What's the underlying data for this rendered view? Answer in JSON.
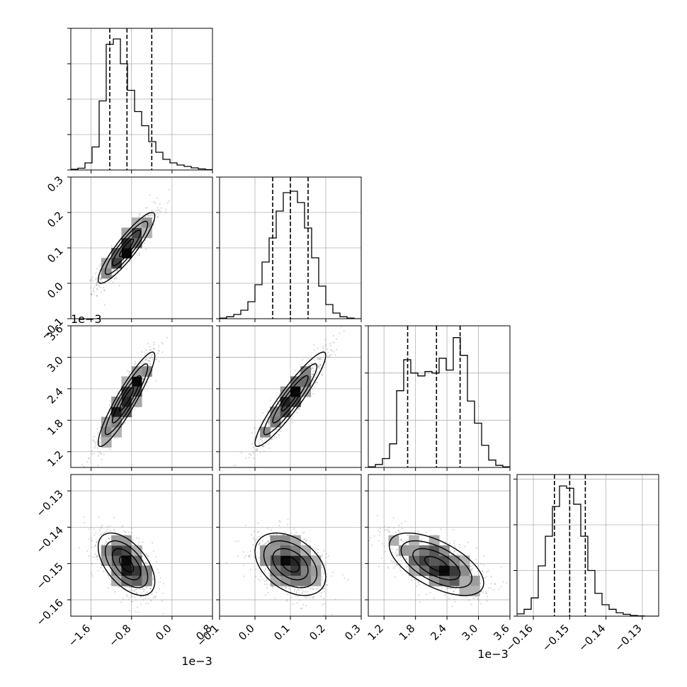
{
  "chart_data": {
    "type": "corner",
    "grid": true,
    "colors": {
      "line": "#000000",
      "points": "#808080",
      "grid": "#b0b0b0",
      "background": "#ffffff"
    },
    "params": [
      {
        "range": [
          -2.0,
          0.8
        ],
        "ticks": [
          -1.6,
          -0.8,
          0.0,
          0.8
        ],
        "tick_labels": [
          "−1.6",
          "−0.8",
          "0.0",
          "0.8"
        ],
        "offset_label": "1e−3",
        "mean": -0.9,
        "sd": 0.28,
        "quantiles": [
          -1.23,
          -0.89,
          -0.4
        ]
      },
      {
        "range": [
          -0.1,
          0.3
        ],
        "ticks": [
          -0.1,
          0.0,
          0.1,
          0.2,
          0.3
        ],
        "tick_labels": [
          "−0.1",
          "0.0",
          "0.1",
          "0.2",
          "0.3"
        ],
        "offset_label": "",
        "mean": 0.1,
        "sd": 0.05,
        "quantiles": [
          0.05,
          0.1,
          0.15
        ]
      },
      {
        "range": [
          0.9,
          3.6
        ],
        "ticks": [
          1.2,
          1.8,
          2.4,
          3.0,
          3.6
        ],
        "tick_labels": [
          "1.2",
          "1.8",
          "2.4",
          "3.0",
          "3.6"
        ],
        "offset_label": "1e−3",
        "mean": 2.2,
        "sd": 0.45,
        "quantiles": [
          1.65,
          2.2,
          2.65
        ]
      },
      {
        "range": [
          -0.1645,
          -0.1255
        ],
        "ticks": [
          -0.16,
          -0.15,
          -0.14,
          -0.13
        ],
        "tick_labels": [
          "−0.16",
          "−0.15",
          "−0.14",
          "−0.13"
        ],
        "offset_label": "",
        "mean": -0.1502,
        "sd": 0.0043,
        "quantiles": [
          -0.1542,
          -0.15,
          -0.1457
        ]
      }
    ],
    "histograms": [
      {
        "param": 0,
        "bin_edges": [
          -2.0,
          -1.86,
          -1.72,
          -1.58,
          -1.44,
          -1.3,
          -1.16,
          -1.02,
          -0.88,
          -0.74,
          -0.6,
          -0.46,
          -0.32,
          -0.18,
          -0.04,
          0.1,
          0.24,
          0.38,
          0.52,
          0.66,
          0.8
        ],
        "counts": [
          0.2,
          0.5,
          2.0,
          6.5,
          19.5,
          35.5,
          37.0,
          30.0,
          22.5,
          16.5,
          12.5,
          8.0,
          5.0,
          3.0,
          2.0,
          1.4,
          1.0,
          0.6,
          0.3,
          0.1
        ],
        "ylim": [
          0,
          40
        ],
        "yticks": [
          0,
          10,
          20,
          30,
          40
        ]
      },
      {
        "param": 1,
        "bin_edges": [
          -0.1,
          -0.08,
          -0.06,
          -0.04,
          -0.02,
          0.0,
          0.02,
          0.04,
          0.06,
          0.08,
          0.1,
          0.12,
          0.14,
          0.16,
          0.18,
          0.2,
          0.22,
          0.24,
          0.26,
          0.28,
          0.3
        ],
        "counts": [
          0.2,
          0.7,
          1.5,
          3.0,
          6.0,
          12.0,
          20.0,
          28.5,
          38.0,
          44.5,
          45.0,
          41.0,
          32.0,
          21.5,
          11.5,
          5.0,
          2.0,
          0.7,
          0.2,
          0.0
        ],
        "ylim": [
          0,
          50
        ],
        "yticks": [
          0,
          12.5,
          25,
          37.5,
          50
        ]
      },
      {
        "param": 2,
        "bin_edges": [
          0.9,
          1.035,
          1.17,
          1.305,
          1.44,
          1.575,
          1.71,
          1.845,
          1.98,
          2.115,
          2.25,
          2.385,
          2.52,
          2.655,
          2.79,
          2.925,
          3.06,
          3.195,
          3.33,
          3.465,
          3.6
        ],
        "counts": [
          0.2,
          1.0,
          3.0,
          8.0,
          26.0,
          36.5,
          32.0,
          31.0,
          32.5,
          32.0,
          37.0,
          33.0,
          44.0,
          38.0,
          22.5,
          15.0,
          7.5,
          2.5,
          0.7,
          0.2
        ],
        "ylim": [
          0,
          48
        ],
        "yticks": [
          0,
          16,
          32,
          48
        ]
      },
      {
        "param": 3,
        "bin_edges": [
          -0.1645,
          -0.16255,
          -0.1606,
          -0.15865,
          -0.1567,
          -0.15475,
          -0.1528,
          -0.15085,
          -0.1489,
          -0.14695,
          -0.145,
          -0.14305,
          -0.1411,
          -0.13915,
          -0.1372,
          -0.13525,
          -0.1333,
          -0.13135,
          -0.1294,
          -0.12745,
          -0.1255
        ],
        "counts": [
          1.0,
          3.0,
          8.0,
          22.0,
          35.0,
          48.0,
          57.0,
          56.0,
          49.0,
          35.0,
          20.0,
          10.0,
          5.0,
          3.0,
          1.5,
          0.8,
          0.3,
          0.1,
          0.0,
          0.0
        ],
        "ylim": [
          0,
          62
        ],
        "yticks": [
          0,
          20,
          40,
          60
        ]
      }
    ],
    "pairs": [
      {
        "x": 0,
        "y": 1,
        "correlation": 0.9
      },
      {
        "x": 0,
        "y": 2,
        "correlation": 0.92
      },
      {
        "x": 1,
        "y": 2,
        "correlation": 0.93
      },
      {
        "x": 0,
        "y": 3,
        "correlation": -0.55
      },
      {
        "x": 1,
        "y": 3,
        "correlation": -0.4
      },
      {
        "x": 2,
        "y": 3,
        "correlation": -0.6
      }
    ]
  }
}
